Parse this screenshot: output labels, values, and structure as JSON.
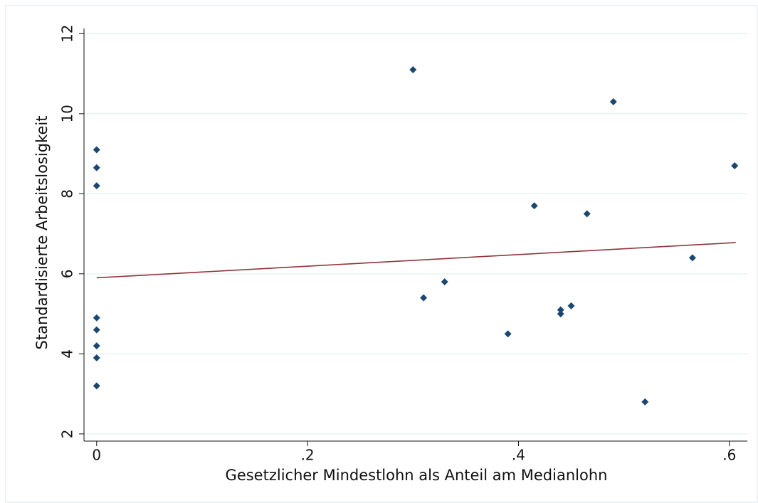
{
  "chart_data": {
    "type": "scatter",
    "x_label": "Gesetzlicher Mindestlohn als Anteil am Medianlohn",
    "y_label": "Standardisierte Arbeitslosigkeit",
    "xlim": [
      -0.012,
      0.617
    ],
    "ylim": [
      1.82,
      12.13
    ],
    "xticks": [
      0,
      {
        "value": 0.2,
        "label": ".2"
      },
      {
        "value": 0.4,
        "label": ".4"
      },
      {
        "value": 0.6,
        "label": ".6"
      }
    ],
    "yticks": [
      2,
      4,
      6,
      8,
      10,
      12
    ],
    "grid": true,
    "series": [
      {
        "type": "scatter",
        "color": "#1a476f",
        "x": [
          0,
          0,
          0,
          0,
          0,
          0,
          0,
          0,
          0.3,
          0.31,
          0.33,
          0.39,
          0.415,
          0.44,
          0.44,
          0.45,
          0.465,
          0.49,
          0.52,
          0.565,
          0.605
        ],
        "values": [
          9.1,
          8.65,
          8.2,
          4.9,
          4.6,
          4.2,
          3.9,
          3.2,
          11.1,
          5.4,
          5.8,
          4.5,
          7.7,
          5.1,
          5.0,
          5.2,
          7.5,
          10.3,
          2.8,
          6.4,
          8.7
        ]
      },
      {
        "type": "line",
        "color": "#90353b",
        "x": [
          0,
          0.606
        ],
        "values": [
          5.9,
          6.78
        ]
      }
    ]
  }
}
